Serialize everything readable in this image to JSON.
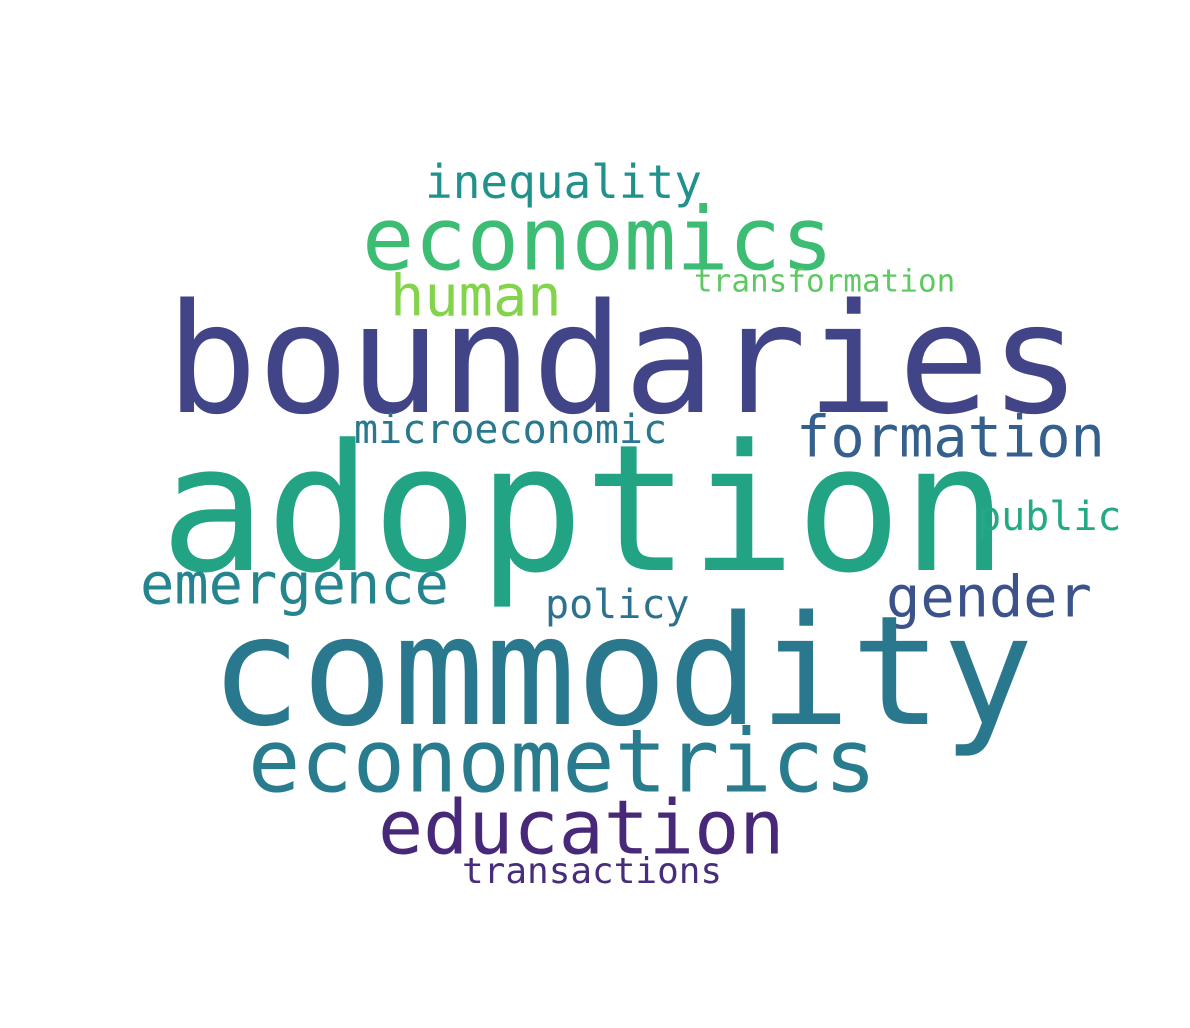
{
  "words": [
    {
      "id": "inequality",
      "text": "inequality",
      "color": "#21918c"
    },
    {
      "id": "economics",
      "text": "economics",
      "color": "#3dbc74"
    },
    {
      "id": "transformation",
      "text": "transformation",
      "color": "#5ec962"
    },
    {
      "id": "human",
      "text": "human",
      "color": "#84d44b"
    },
    {
      "id": "boundaries",
      "text": "boundaries",
      "color": "#414487"
    },
    {
      "id": "microeconomic",
      "text": "microeconomic",
      "color": "#2a788e"
    },
    {
      "id": "formation",
      "text": "formation",
      "color": "#355f8d"
    },
    {
      "id": "adoption",
      "text": "adoption",
      "color": "#22a384"
    },
    {
      "id": "public",
      "text": "public",
      "color": "#23a983"
    },
    {
      "id": "emergence",
      "text": "emergence",
      "color": "#25858e"
    },
    {
      "id": "gender",
      "text": "gender",
      "color": "#3b528b"
    },
    {
      "id": "policy",
      "text": "policy",
      "color": "#2c728e"
    },
    {
      "id": "commodity",
      "text": "commodity",
      "color": "#2a788e"
    },
    {
      "id": "econometrics",
      "text": "econometrics",
      "color": "#287c8e"
    },
    {
      "id": "education",
      "text": "education",
      "color": "#482878"
    },
    {
      "id": "transactions",
      "text": "transactions",
      "color": "#472d7b"
    }
  ]
}
